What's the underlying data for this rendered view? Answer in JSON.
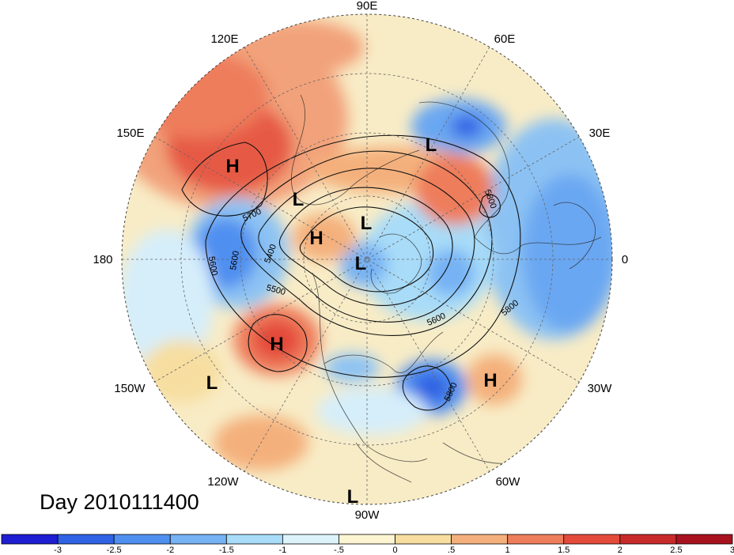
{
  "map": {
    "projection": "north-polar-stereographic",
    "longitude_labels": {
      "e90": "90E",
      "e60": "60E",
      "e30": "30E",
      "zero": "0",
      "w30": "30W",
      "w60": "60W",
      "w90": "90W",
      "w120": "120W",
      "w150": "150W",
      "d180": "180",
      "e150": "150E",
      "e120": "120E"
    },
    "pressure_systems": [
      {
        "type": "H"
      },
      {
        "type": "H"
      },
      {
        "type": "H"
      },
      {
        "type": "H"
      },
      {
        "type": "L"
      },
      {
        "type": "L"
      },
      {
        "type": "L"
      },
      {
        "type": "L"
      },
      {
        "type": "L"
      },
      {
        "type": "L"
      }
    ],
    "contour_labels": [
      "5700",
      "5600",
      "5500",
      "5400",
      "5600",
      "5800",
      "5800",
      "5600",
      "5800"
    ]
  },
  "day_label": "Day 2010111400",
  "colorbar": {
    "colors": [
      "#1e1ed2",
      "#2f62e4",
      "#4f8ff0",
      "#76b2f4",
      "#a8dcf8",
      "#dcf3fb",
      "#fdf5d2",
      "#f7dea0",
      "#f4b07c",
      "#ee7d5c",
      "#e44a3a",
      "#c82a2a",
      "#a8121e"
    ],
    "ticks": [
      "-3",
      "-2.5",
      "-2",
      "-1.5",
      "-1",
      "-.5",
      "0",
      ".5",
      "1",
      "1.5",
      "2",
      "2.5",
      "3"
    ]
  }
}
